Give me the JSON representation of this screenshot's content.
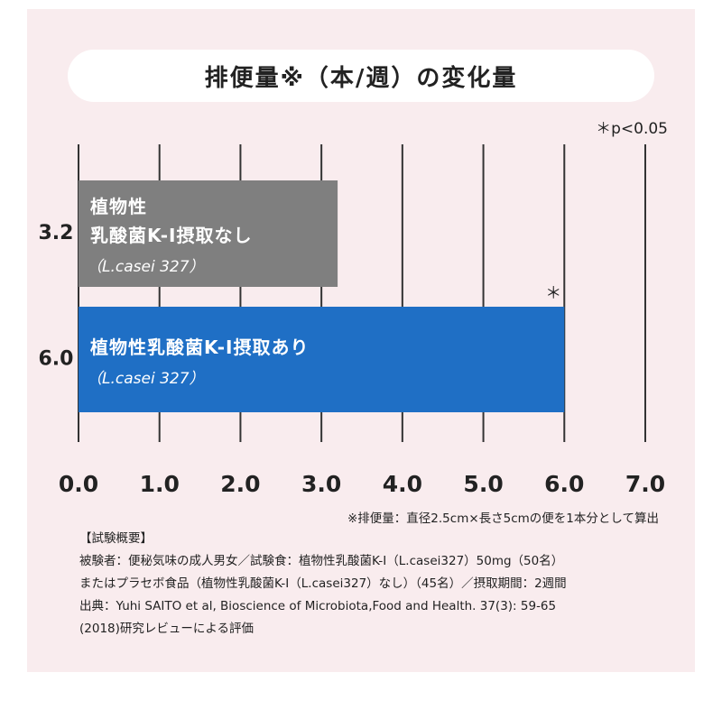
{
  "chart_data": {
    "type": "bar",
    "orientation": "horizontal",
    "title": "排便量※（本/週）の変化量",
    "annotation": "＊p<0.05",
    "categories": [
      "植物性\n乳酸菌K-Ⅰ摂取なし",
      "植物性乳酸菌K-Ⅰ摂取あり"
    ],
    "category_notes": [
      "（L.casei 327）",
      "（L.casei 327）"
    ],
    "values": [
      3.2,
      6.0
    ],
    "value_labels": [
      "3.2",
      "6.0"
    ],
    "colors": [
      "#7f7f7f",
      "#1f6fc5"
    ],
    "markers": [
      null,
      "＊"
    ],
    "xlim": [
      0,
      7
    ],
    "xticks": [
      {
        "value": 0,
        "label": "0.0"
      },
      {
        "value": 1,
        "label": "1.0"
      },
      {
        "value": 2,
        "label": "2.0"
      },
      {
        "value": 3,
        "label": "3.0"
      },
      {
        "value": 4,
        "label": "4.0"
      },
      {
        "value": 5,
        "label": "5.0"
      },
      {
        "value": 6,
        "label": "6.0"
      },
      {
        "value": 7,
        "label": "7.0"
      }
    ],
    "grid": true,
    "footnote": "※排便量：直径2.5cm×長さ5cmの便を1本分として算出"
  },
  "notes": {
    "heading": "【試験概要】",
    "lines": [
      "被験者：便秘気味の成人男女／試験食：植物性乳酸菌K-Ⅰ（L.casei327）50mg（50名）",
      "またはプラセボ食品（植物性乳酸菌K-Ⅰ（L.casei327）なし）（45名）／摂取期間：2週間",
      "出典：Yuhi SAITO et al, Bioscience of Microbiota,Food and Health. 37(3): 59-65",
      "(2018)研究レビューによる評価"
    ]
  }
}
